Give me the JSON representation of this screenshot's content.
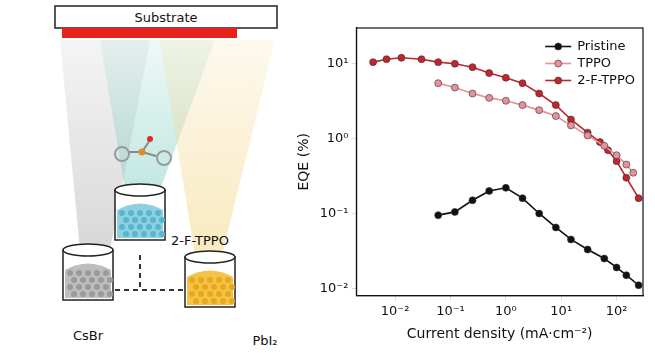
{
  "chart_data": {
    "type": "line",
    "x_label": "Current density (mA·cm⁻²)",
    "y_label": "EQE (%)",
    "log": true,
    "grid": false,
    "legend": "upper right",
    "xlim": [
      0.002,
      300
    ],
    "ylim": [
      0.008,
      30
    ],
    "xticks": [
      {
        "value": 0.01,
        "label": "10⁻²"
      },
      {
        "value": 0.1,
        "label": "10⁻¹"
      },
      {
        "value": 1,
        "label": "10⁰"
      },
      {
        "value": 10,
        "label": "10¹"
      },
      {
        "value": 100,
        "label": "10²"
      }
    ],
    "yticks": [
      {
        "value": 0.01,
        "label": "10⁻²"
      },
      {
        "value": 0.1,
        "label": "10⁻¹"
      },
      {
        "value": 1,
        "label": "10⁰"
      },
      {
        "value": 10,
        "label": "10¹"
      }
    ],
    "series": [
      {
        "name": "Pristine",
        "color": "#111111",
        "marker": "circle",
        "line_style": "solid",
        "x": [
          0.06,
          0.12,
          0.25,
          0.5,
          1,
          2,
          4,
          8,
          15,
          30,
          60,
          100,
          150,
          250
        ],
        "values": [
          0.095,
          0.105,
          0.15,
          0.2,
          0.22,
          0.16,
          0.1,
          0.065,
          0.045,
          0.033,
          0.025,
          0.019,
          0.015,
          0.011
        ]
      },
      {
        "name": "TPPO",
        "color": "#e8909c",
        "marker": "circle",
        "line_style": "solid",
        "x": [
          0.06,
          0.12,
          0.25,
          0.5,
          1,
          2,
          4,
          8,
          15,
          30,
          60,
          100,
          150,
          200
        ],
        "values": [
          5.5,
          4.8,
          4.0,
          3.5,
          3.2,
          2.8,
          2.4,
          2.0,
          1.5,
          1.1,
          0.8,
          0.6,
          0.45,
          0.35
        ]
      },
      {
        "name": "2-F-TPPO",
        "color": "#c0262b",
        "marker": "circle",
        "line_style": "solid",
        "x": [
          0.004,
          0.007,
          0.013,
          0.03,
          0.06,
          0.12,
          0.25,
          0.5,
          1,
          2,
          4,
          8,
          15,
          30,
          50,
          70,
          100,
          150,
          250
        ],
        "values": [
          10.5,
          11.5,
          12,
          11.5,
          10.5,
          10,
          9,
          7.5,
          6.5,
          5.5,
          4,
          2.8,
          1.8,
          1.2,
          0.9,
          0.7,
          0.5,
          0.3,
          0.16
        ]
      }
    ]
  },
  "diagram": {
    "substrate": "Substrate",
    "sources": [
      {
        "label": "CsBr"
      },
      {
        "label": "PbI₂"
      },
      {
        "label": "2-F-TPPO"
      }
    ]
  }
}
